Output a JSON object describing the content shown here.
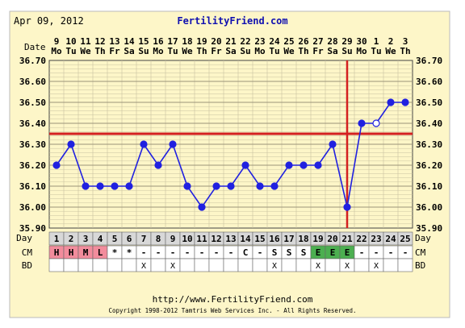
{
  "header": {
    "date": "Apr 09, 2012",
    "site": "FertilityFriend.com"
  },
  "footer": {
    "url": "http://www.FertilityFriend.com",
    "copyright": "Copyright 1998-2012 Tamtris Web Services Inc. - All Rights Reserved."
  },
  "labels": {
    "date": "Date",
    "day": "Day",
    "cm": "CM",
    "bd": "BD"
  },
  "colors": {
    "background": "#fdf6c8",
    "grid": "#c9c3a0",
    "line": "#2020e0",
    "threshold": "#d42020",
    "day_row": "#d8d8d8",
    "cm_h": "#f28c9c",
    "cm_e": "#4caf50"
  },
  "chart_data": {
    "type": "line",
    "ylim": [
      35.9,
      36.7
    ],
    "yticks": [
      "35.90",
      "36.00",
      "36.10",
      "36.20",
      "36.30",
      "36.40",
      "36.50",
      "36.60",
      "36.70"
    ],
    "dates": [
      "9",
      "10",
      "11",
      "12",
      "13",
      "14",
      "15",
      "16",
      "17",
      "18",
      "19",
      "20",
      "21",
      "22",
      "23",
      "24",
      "25",
      "26",
      "27",
      "28",
      "29",
      "30",
      "1",
      "2",
      "3"
    ],
    "weekdays": [
      "Mo",
      "Tu",
      "We",
      "Th",
      "Fr",
      "Sa",
      "Su",
      "Mo",
      "Tu",
      "We",
      "Th",
      "Fr",
      "Sa",
      "Su",
      "Mo",
      "Tu",
      "We",
      "Th",
      "Fr",
      "Sa",
      "Su",
      "Mo",
      "Tu",
      "We",
      "Th"
    ],
    "days": [
      "1",
      "2",
      "3",
      "4",
      "5",
      "6",
      "7",
      "8",
      "9",
      "10",
      "11",
      "12",
      "13",
      "14",
      "15",
      "16",
      "17",
      "18",
      "19",
      "20",
      "21",
      "22",
      "23",
      "24",
      "25"
    ],
    "temps": [
      36.2,
      36.3,
      36.1,
      36.1,
      36.1,
      36.1,
      36.3,
      36.2,
      36.3,
      36.1,
      36.0,
      36.1,
      36.1,
      36.2,
      36.1,
      36.1,
      36.2,
      36.2,
      36.2,
      36.3,
      36.0,
      36.4,
      36.4,
      36.5,
      36.5
    ],
    "open_points": [
      23
    ],
    "coverline": 36.35,
    "ovulation_day": 21,
    "cm": [
      "H",
      "H",
      "M",
      "L",
      "*",
      "*",
      "-",
      "-",
      "-",
      "-",
      "-",
      "-",
      "-",
      "C",
      "-",
      "S",
      "S",
      "S",
      "E",
      "E",
      "E",
      "-",
      "-",
      "-",
      "-"
    ],
    "bd": [
      "",
      "",
      "",
      "",
      "",
      "",
      "X",
      "",
      "X",
      "",
      "",
      "",
      "",
      "",
      "",
      "X",
      "",
      "",
      "X",
      "",
      "X",
      "",
      "X",
      "",
      ""
    ]
  }
}
